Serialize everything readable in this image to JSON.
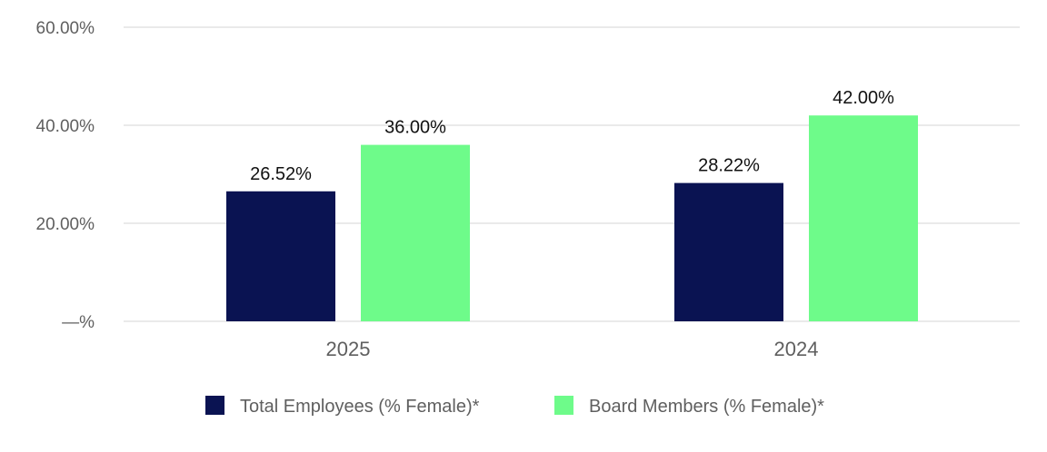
{
  "chart_data": {
    "type": "bar",
    "categories": [
      "2025",
      "2024"
    ],
    "series": [
      {
        "name": "Total Employees (% Female)*",
        "values": [
          26.52,
          28.22
        ],
        "labels": [
          "26.52%",
          "28.22%"
        ],
        "color": "#0a1352"
      },
      {
        "name": "Board Members (% Female)*",
        "values": [
          36.0,
          42.0
        ],
        "labels": [
          "36.00%",
          "42.00%"
        ],
        "color": "#6efb8a"
      }
    ],
    "yticks": [
      0,
      20,
      40,
      60
    ],
    "ytick_labels": [
      "—%",
      "20.00%",
      "40.00%",
      "60.00%"
    ],
    "ylim": [
      0,
      60
    ],
    "grid": true,
    "legend_position": "bottom-center"
  }
}
